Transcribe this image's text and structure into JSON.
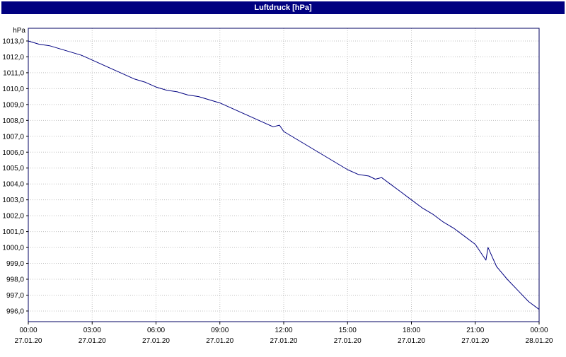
{
  "title": "Luftdruck [hPa]",
  "colors": {
    "titlebar_bg": "#000080",
    "titlebar_text": "#ffffff",
    "line": "#000080",
    "grid": "#c0c0c0",
    "plot_border": "#000060",
    "axis_text": "#000000",
    "background": "#ffffff"
  },
  "chart_data": {
    "type": "line",
    "title": "Luftdruck [hPa]",
    "ylabel": "hPa",
    "unit_label": "hPa",
    "grid": true,
    "legend": "none",
    "xlim_hours": [
      0,
      24
    ],
    "ylim": [
      995.33,
      1013.8
    ],
    "y_tick_values": [
      1013,
      1012,
      1011,
      1010,
      1009,
      1008,
      1007,
      1006,
      1005,
      1004,
      1003,
      1002,
      1001,
      1000,
      999,
      998,
      997,
      996
    ],
    "y_tick_labels": [
      "1013,0",
      "1012,0",
      "1011,0",
      "1010,0",
      "1009,0",
      "1008,0",
      "1007,0",
      "1006,0",
      "1005,0",
      "1004,0",
      "1003,0",
      "1002,0",
      "1001,0",
      "1000,0",
      "999,0",
      "998,0",
      "997,0",
      "996,0"
    ],
    "x_tick_hours": [
      0,
      3,
      6,
      9,
      12,
      15,
      18,
      21,
      24
    ],
    "x_tick_times": [
      "00:00",
      "03:00",
      "06:00",
      "09:00",
      "12:00",
      "15:00",
      "18:00",
      "21:00",
      "00:00"
    ],
    "x_tick_dates": [
      "27.01.20",
      "27.01.20",
      "27.01.20",
      "27.01.20",
      "27.01.20",
      "27.01.20",
      "27.01.20",
      "27.01.20",
      "28.01.20"
    ],
    "series": [
      {
        "name": "Luftdruck",
        "x_hours": [
          0,
          0.5,
          1,
          1.5,
          2,
          2.5,
          3,
          3.5,
          4,
          4.5,
          5,
          5.5,
          6,
          6.5,
          7,
          7.5,
          8,
          8.5,
          9,
          9.5,
          10,
          10.5,
          11,
          11.5,
          11.8,
          12,
          12.5,
          13,
          13.5,
          14,
          14.5,
          15,
          15.5,
          16,
          16.3,
          16.6,
          17,
          17.5,
          18,
          18.5,
          19,
          19.5,
          20,
          20.5,
          21,
          21.3,
          21.5,
          21.6,
          21.8,
          22,
          22.5,
          23,
          23.5,
          24
        ],
        "values": [
          1013.0,
          1012.8,
          1012.7,
          1012.5,
          1012.3,
          1012.1,
          1011.8,
          1011.5,
          1011.2,
          1010.9,
          1010.6,
          1010.4,
          1010.1,
          1009.9,
          1009.8,
          1009.6,
          1009.5,
          1009.3,
          1009.1,
          1008.8,
          1008.5,
          1008.2,
          1007.9,
          1007.6,
          1007.7,
          1007.3,
          1006.9,
          1006.5,
          1006.1,
          1005.7,
          1005.3,
          1004.9,
          1004.6,
          1004.5,
          1004.3,
          1004.4,
          1004.0,
          1003.5,
          1003.0,
          1002.5,
          1002.1,
          1001.6,
          1001.2,
          1000.7,
          1000.2,
          999.6,
          999.2,
          1000.0,
          999.4,
          998.8,
          998.0,
          997.3,
          996.6,
          996.1
        ]
      }
    ]
  }
}
